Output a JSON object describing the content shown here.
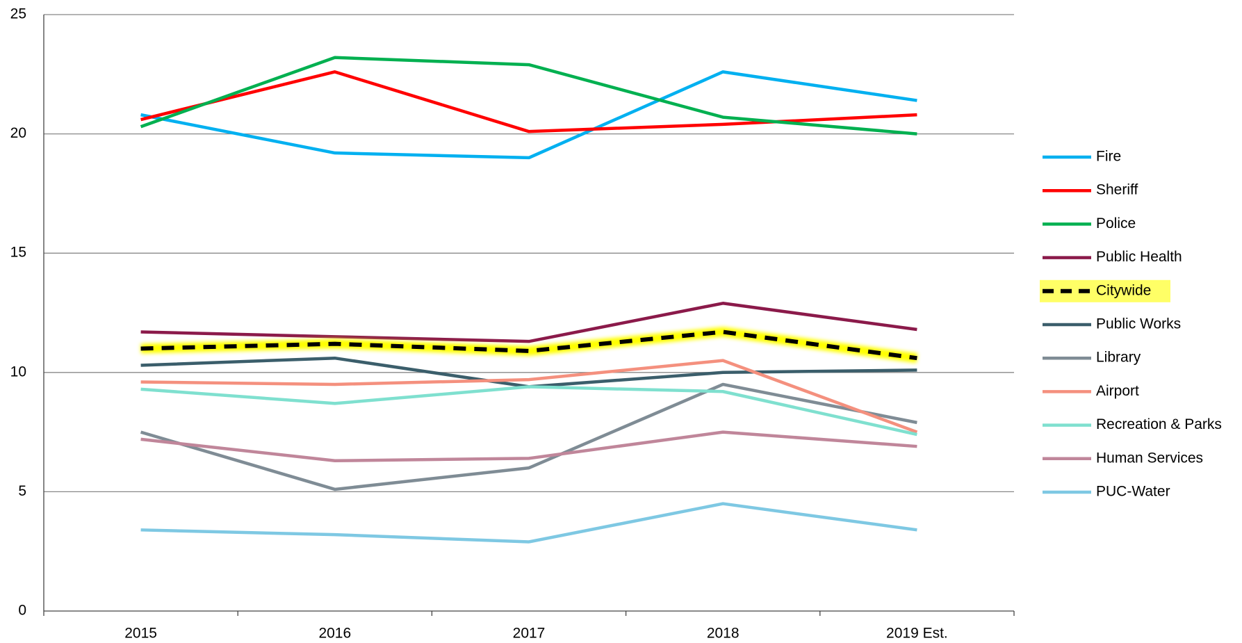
{
  "chart_data": {
    "type": "line",
    "categories": [
      "2015",
      "2016",
      "2017",
      "2018",
      "2019 Est."
    ],
    "ylim": [
      0,
      25
    ],
    "yticks": [
      0,
      5,
      10,
      15,
      20,
      25
    ],
    "grid": true,
    "legend": "right",
    "series": [
      {
        "name": "Fire",
        "color": "#00b0f0",
        "values": [
          20.8,
          19.2,
          19.0,
          22.6,
          21.4
        ]
      },
      {
        "name": "Sheriff",
        "color": "#ff0000",
        "values": [
          20.6,
          22.6,
          20.1,
          20.4,
          20.8
        ]
      },
      {
        "name": "Police",
        "color": "#00b050",
        "values": [
          20.3,
          23.2,
          22.9,
          20.7,
          20.0
        ]
      },
      {
        "name": "Public Health",
        "color": "#8b1a4a",
        "values": [
          11.7,
          11.5,
          11.3,
          12.9,
          11.8
        ]
      },
      {
        "name": "Citywide",
        "color": "#000000",
        "dash": true,
        "highlight": "#ffff00",
        "values": [
          11.0,
          11.2,
          10.9,
          11.7,
          10.6
        ]
      },
      {
        "name": "Public Works",
        "color": "#3b5e6b",
        "values": [
          10.3,
          10.6,
          9.4,
          10.0,
          10.1
        ]
      },
      {
        "name": "Library",
        "color": "#7f8c95",
        "values": [
          7.5,
          5.1,
          6.0,
          9.5,
          7.9
        ]
      },
      {
        "name": "Airport",
        "color": "#f4907e",
        "values": [
          9.6,
          9.5,
          9.7,
          10.5,
          7.5
        ]
      },
      {
        "name": "Recreation & Parks",
        "color": "#7fe0cf",
        "values": [
          9.3,
          8.7,
          9.4,
          9.2,
          7.4
        ]
      },
      {
        "name": "Human Services",
        "color": "#c0869a",
        "values": [
          7.2,
          6.3,
          6.4,
          7.5,
          6.9
        ]
      },
      {
        "name": "PUC-Water",
        "color": "#7ec8e3",
        "values": [
          3.4,
          3.2,
          2.9,
          4.5,
          3.4
        ]
      }
    ]
  }
}
